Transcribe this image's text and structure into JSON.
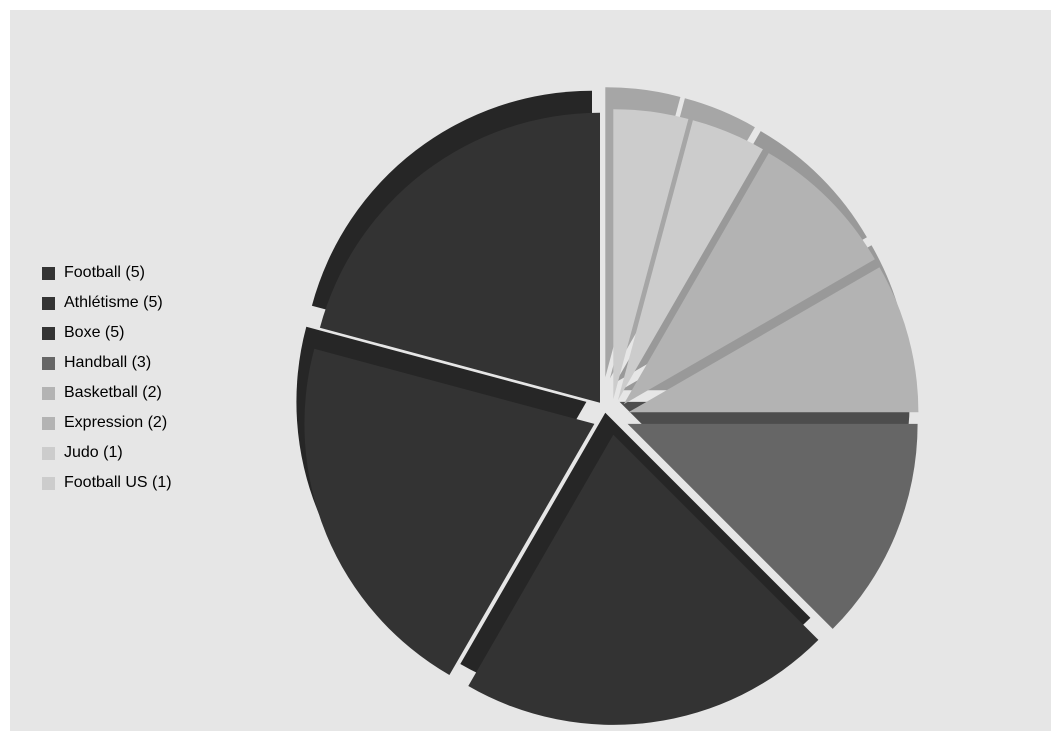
{
  "chart_data": {
    "type": "pie",
    "style": "exploded 3D pie",
    "title": "",
    "legend_position": "left",
    "slices": [
      {
        "label": "Football",
        "value": 5,
        "legend_text": "Football (5)",
        "color": "#333333",
        "edge": "#262626"
      },
      {
        "label": "Athlétisme",
        "value": 5,
        "legend_text": "Athlétisme (5)",
        "color": "#333333",
        "edge": "#262626"
      },
      {
        "label": "Boxe",
        "value": 5,
        "legend_text": "Boxe (5)",
        "color": "#333333",
        "edge": "#262626"
      },
      {
        "label": "Handball",
        "value": 3,
        "legend_text": "Handball (3)",
        "color": "#666666",
        "edge": "#4d4d4d"
      },
      {
        "label": "Basketball",
        "value": 2,
        "legend_text": "Basketball (2)",
        "color": "#b3b3b3",
        "edge": "#999999"
      },
      {
        "label": "Expression",
        "value": 2,
        "legend_text": "Expression (2)",
        "color": "#b3b3b3",
        "edge": "#999999"
      },
      {
        "label": "Judo",
        "value": 1,
        "legend_text": "Judo (1)",
        "color": "#cccccc",
        "edge": "#a6a6a6"
      },
      {
        "label": "Football US",
        "value": 1,
        "legend_text": "Football US (1)",
        "color": "#cccccc",
        "edge": "#a6a6a6"
      }
    ]
  }
}
